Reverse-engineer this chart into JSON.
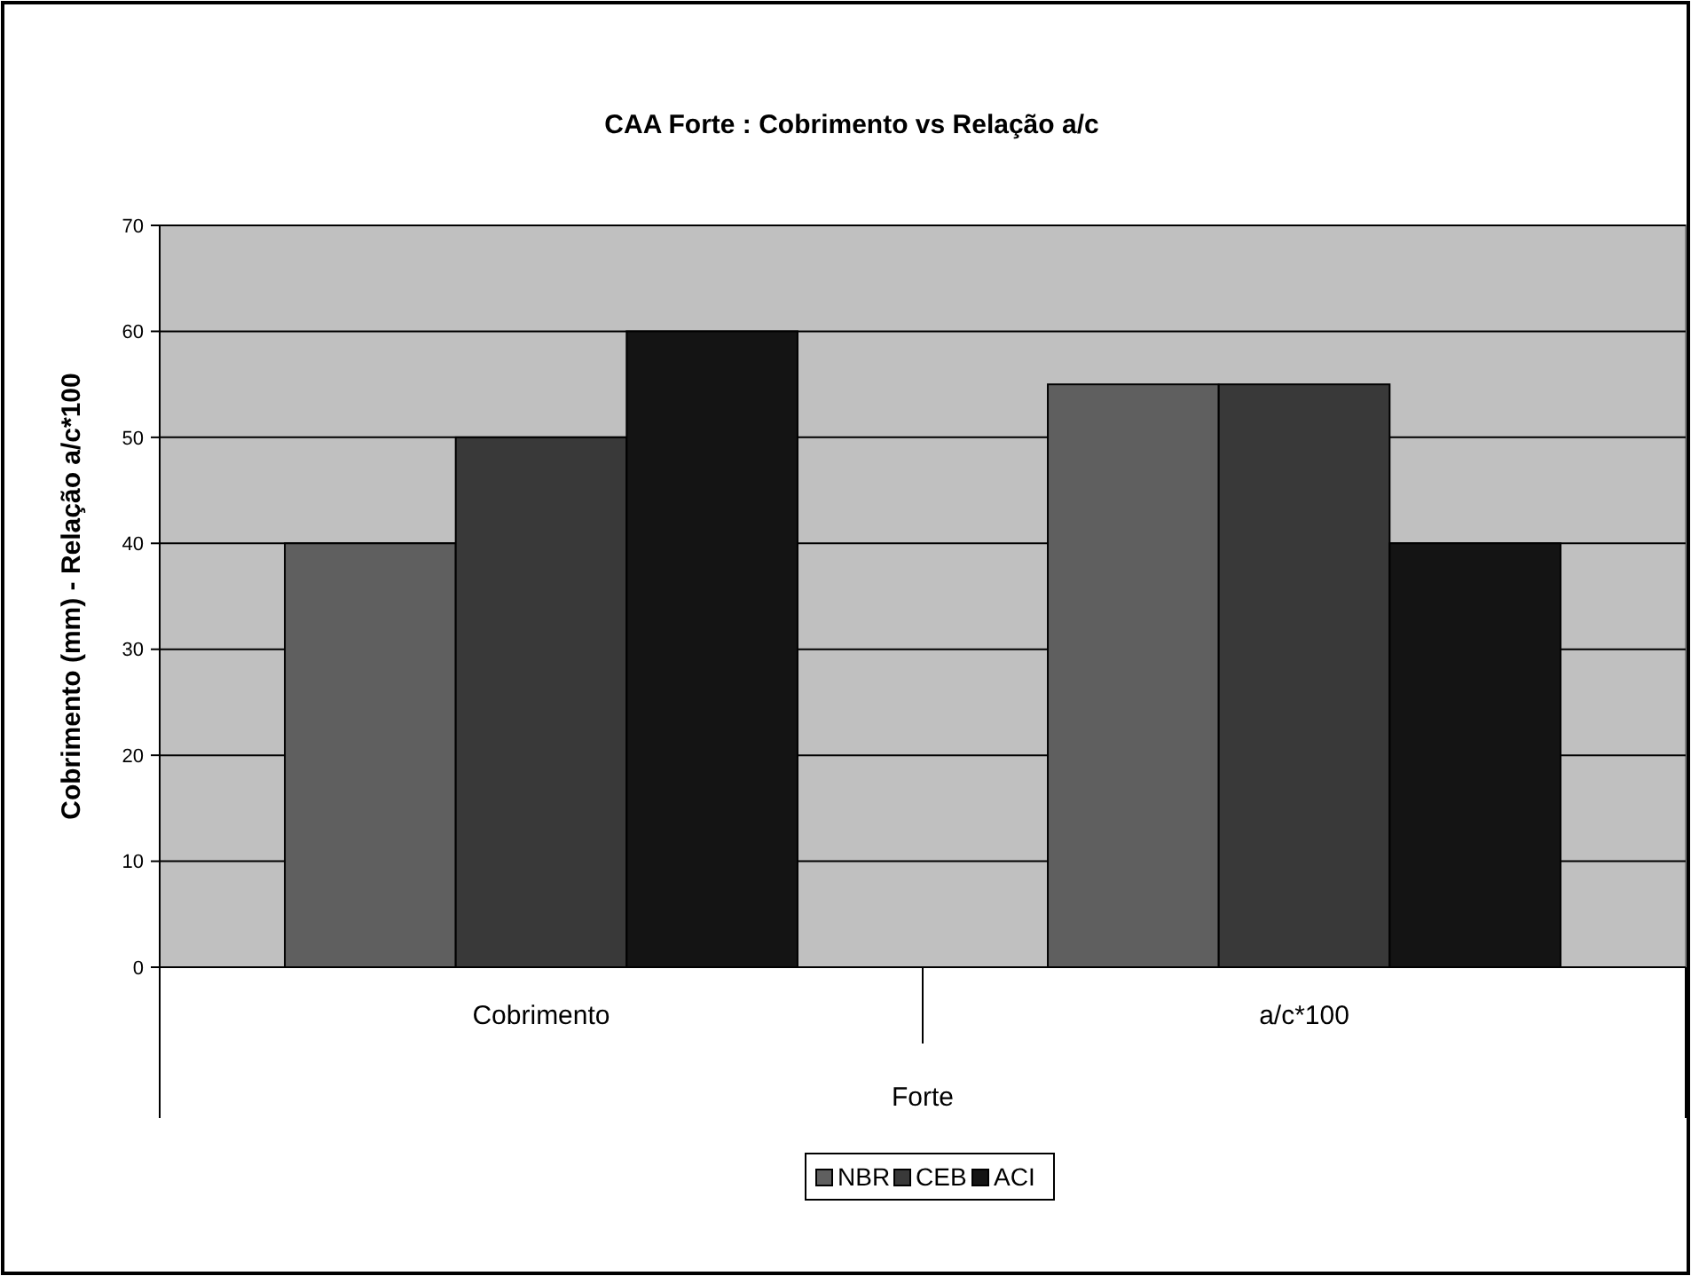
{
  "chart_data": {
    "type": "bar",
    "title": "CAA Forte : Cobrimento vs Relação a/c",
    "xlabel": "Forte",
    "ylabel": "Cobrimento (mm) - Relação a/c*100",
    "categories": [
      "Cobrimento",
      "a/c*100"
    ],
    "series": [
      {
        "name": "NBR",
        "color": "#5f5f5f",
        "values": [
          40,
          55
        ]
      },
      {
        "name": "CEB",
        "color": "#393939",
        "values": [
          50,
          55
        ]
      },
      {
        "name": "ACI",
        "color": "#141414",
        "values": [
          60,
          40
        ]
      }
    ],
    "ylim": [
      0,
      70
    ],
    "yticks": [
      0,
      10,
      20,
      30,
      40,
      50,
      60,
      70
    ],
    "grid": "y",
    "legend": "bottom"
  }
}
